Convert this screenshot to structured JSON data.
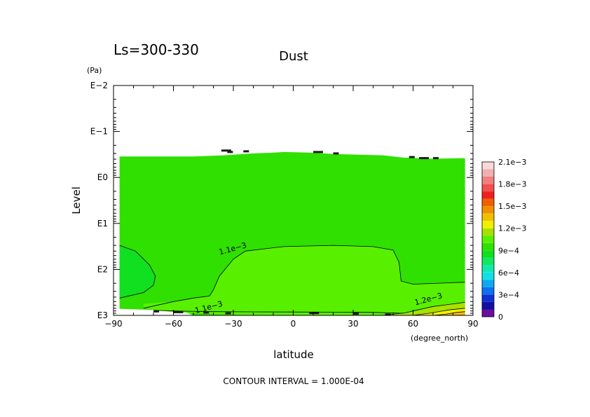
{
  "chart_data": {
    "type": "heatmap",
    "panel_label": "Ls=300-330",
    "title": "Dust",
    "xlabel": "latitude",
    "xunit": "(degree_north)",
    "ylabel": "Level",
    "yunit": "(Pa)",
    "xlim": [
      -90,
      90
    ],
    "x_ticks": [
      {
        "value": -90,
        "label": "−90"
      },
      {
        "value": -60,
        "label": "−60"
      },
      {
        "value": -30,
        "label": "−30"
      },
      {
        "value": 0,
        "label": "0"
      },
      {
        "value": 30,
        "label": "30"
      },
      {
        "value": 60,
        "label": "60"
      },
      {
        "value": 90,
        "label": "90"
      }
    ],
    "y_scale": "log",
    "ylim_pa": [
      1000,
      0.01
    ],
    "y_ticks": [
      {
        "value": 0.01,
        "label": "E−2"
      },
      {
        "value": 0.1,
        "label": "E−1"
      },
      {
        "value": 1,
        "label": "E0"
      },
      {
        "value": 10,
        "label": "E1"
      },
      {
        "value": 100,
        "label": "E2"
      },
      {
        "value": 1000,
        "label": "E3"
      }
    ],
    "contour_interval_label": "CONTOUR INTERVAL = 1.000E-04",
    "colorbar": {
      "colors": [
        "#6a0da0",
        "#1010a0",
        "#1030d0",
        "#1070f0",
        "#10a8f0",
        "#10e0e8",
        "#10e8b0",
        "#10e860",
        "#10e020",
        "#30e000",
        "#58f000",
        "#a8e000",
        "#f0f000",
        "#f0c000",
        "#f09000",
        "#f06000",
        "#f02020",
        "#f05050",
        "#f08080",
        "#f0b0b0",
        "#f8d8d8"
      ],
      "levels": [
        0,
        0.0001,
        0.0002,
        0.0003,
        0.0004,
        0.0005,
        0.0006,
        0.0007,
        0.0008,
        0.0009,
        0.001,
        0.0011,
        0.0012,
        0.0013,
        0.0014,
        0.0015,
        0.0016,
        0.0017,
        0.0018,
        0.0019,
        0.002,
        0.0021
      ],
      "tick_labels": [
        {
          "value": 0,
          "label": "0"
        },
        {
          "value": 0.0003,
          "label": "3e−4"
        },
        {
          "value": 0.0006,
          "label": "6e−4"
        },
        {
          "value": 0.0009,
          "label": "9e−4"
        },
        {
          "value": 0.0012,
          "label": "1.2e−3"
        },
        {
          "value": 0.0015,
          "label": "1.5e−3"
        },
        {
          "value": 0.0018,
          "label": "1.8e−3"
        },
        {
          "value": 0.0021,
          "label": "2.1e−3"
        }
      ]
    },
    "contour_labels": [
      {
        "text": "1.1e−3",
        "lat": -30,
        "p": 40
      },
      {
        "text": "1.1e−3",
        "lat": -42,
        "p": 750
      },
      {
        "text": "1.2e−3",
        "lat": 68,
        "p": 500
      }
    ],
    "regions": [
      {
        "name": "background",
        "value": 0.00095,
        "color": "#30e000"
      },
      {
        "name": "central-blob",
        "value": 0.00105,
        "color": "#58f000"
      },
      {
        "name": "southern-pole-low",
        "value": 0.00085,
        "color": "#10e020"
      },
      {
        "name": "north-surface-high-1",
        "value": 0.00125,
        "color": "#a8e000"
      },
      {
        "name": "north-surface-high-2",
        "value": 0.00135,
        "color": "#f0f000"
      },
      {
        "name": "north-surface-high-3",
        "value": 0.00145,
        "color": "#f0c000"
      },
      {
        "name": "north-surface-high-4",
        "value": 0.00155,
        "color": "#f09000"
      }
    ]
  }
}
